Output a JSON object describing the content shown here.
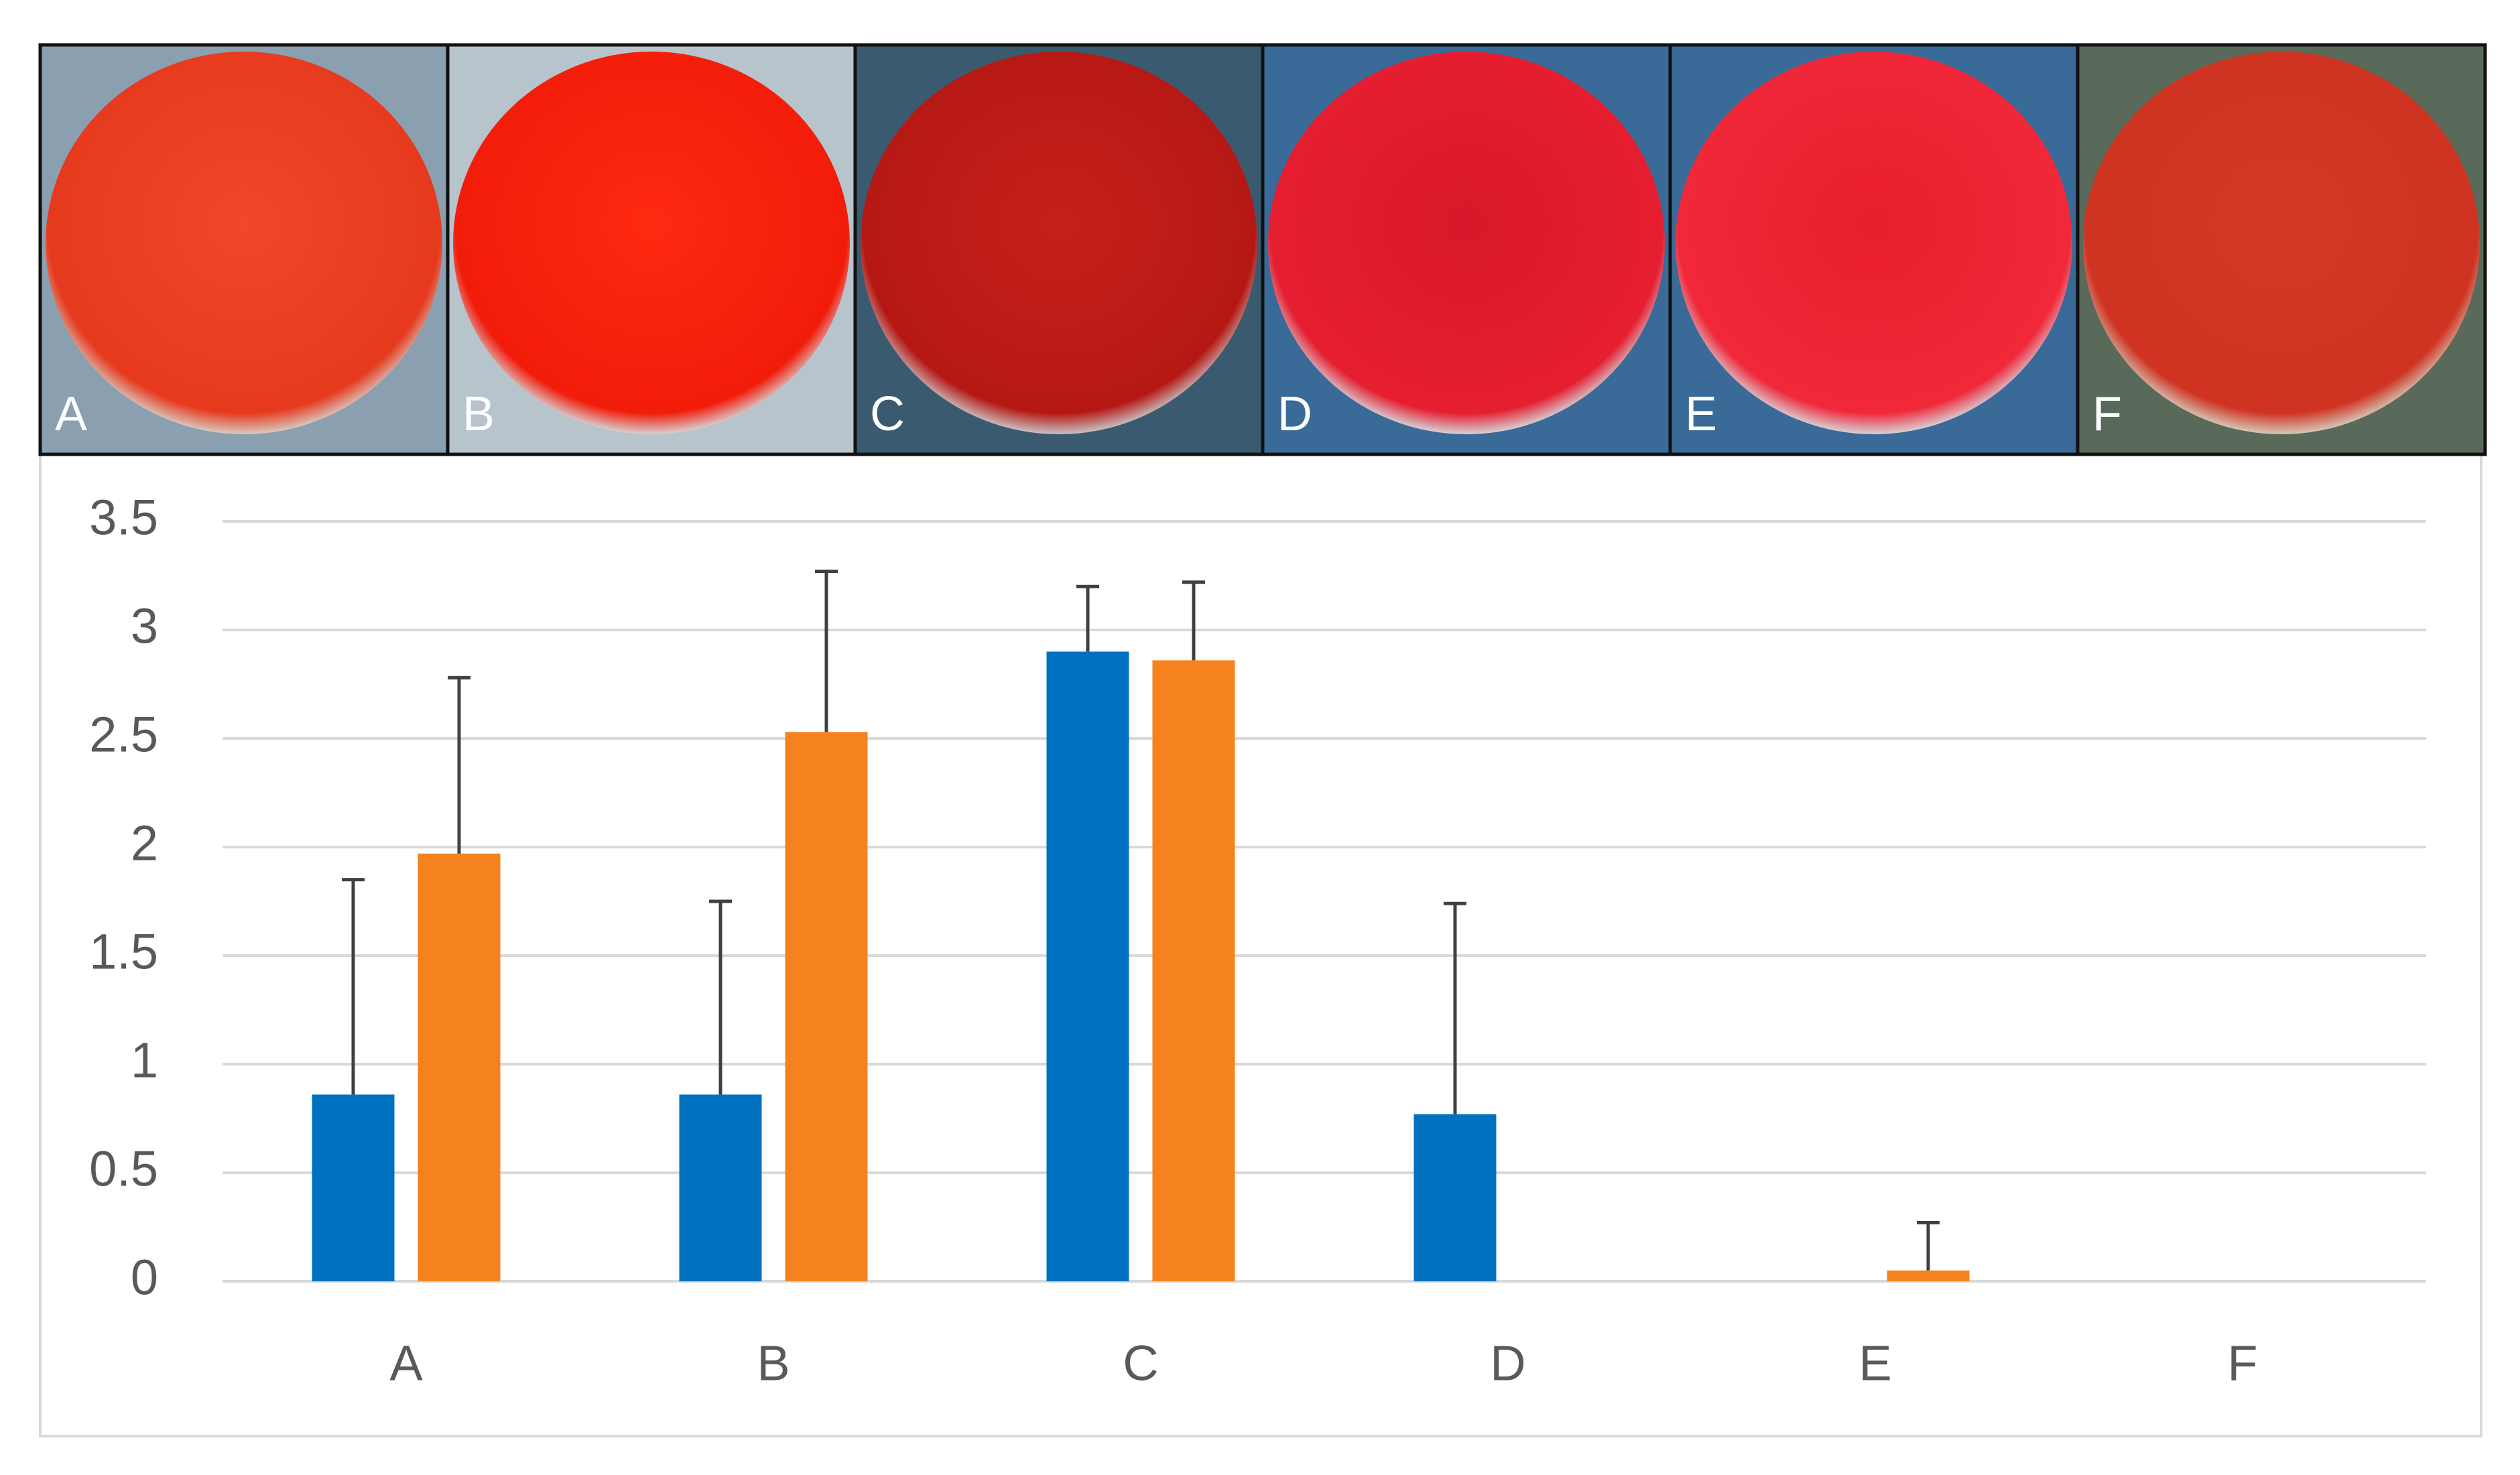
{
  "panels": [
    {
      "label": "A"
    },
    {
      "label": "B"
    },
    {
      "label": "C"
    },
    {
      "label": "D"
    },
    {
      "label": "E"
    },
    {
      "label": "F"
    }
  ],
  "chart_data": {
    "type": "bar",
    "categories": [
      "A",
      "B",
      "C",
      "D",
      "E",
      "F"
    ],
    "series": [
      {
        "color": "#0070c0",
        "values": [
          0.86,
          0.86,
          2.9,
          0.77,
          0,
          0
        ],
        "errors": [
          0.99,
          0.89,
          0.3,
          0.97,
          0,
          0
        ]
      },
      {
        "color": "#f5821f",
        "values": [
          1.97,
          2.53,
          2.86,
          0,
          0.05,
          0
        ],
        "errors": [
          0.81,
          0.74,
          0.36,
          0,
          0.22,
          0
        ]
      }
    ],
    "ylim": [
      0,
      3.5
    ],
    "yticks": [
      0,
      0.5,
      1,
      1.5,
      2,
      2.5,
      3,
      3.5
    ],
    "grid": true
  }
}
